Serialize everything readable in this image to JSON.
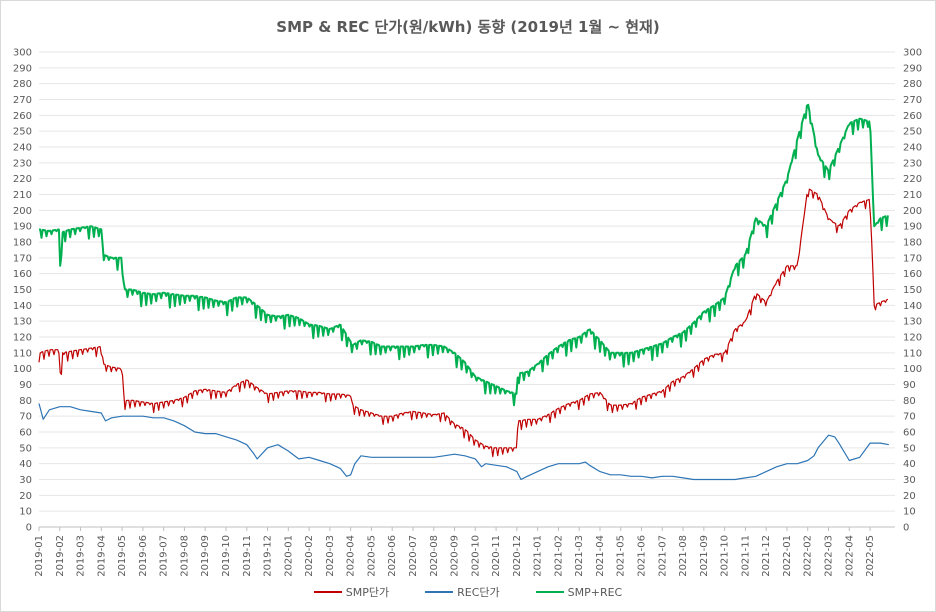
{
  "chart_data": {
    "type": "line",
    "title": "SMP & REC 단가(원/kWh) 동향 (2019년 1월 ~ 현재)",
    "xlabel": "",
    "ylabel": "",
    "ylim": [
      0,
      300
    ],
    "y_ticks": [
      0,
      10,
      20,
      30,
      40,
      50,
      60,
      70,
      80,
      90,
      100,
      110,
      120,
      130,
      140,
      150,
      160,
      170,
      180,
      190,
      200,
      210,
      220,
      230,
      240,
      250,
      260,
      270,
      280,
      290,
      300
    ],
    "secondary_y_ticks": [
      0,
      10,
      20,
      30,
      40,
      50,
      60,
      70,
      80,
      90,
      100,
      110,
      120,
      130,
      140,
      150,
      160,
      170,
      180,
      190,
      200,
      210,
      220,
      230,
      240,
      250,
      260,
      270,
      280,
      290,
      300
    ],
    "grid": true,
    "legend_position": "bottom",
    "x_tick_labels": [
      "2019-01",
      "2019-02",
      "2019-03",
      "2019-04",
      "2019-05",
      "2019-06",
      "2019-07",
      "2019-08",
      "2019-09",
      "2019-10",
      "2019-11",
      "2019-12",
      "2020-01",
      "2020-02",
      "2020-03",
      "2020-04",
      "2020-05",
      "2020-06",
      "2020-07",
      "2020-08",
      "2020-09",
      "2020-10",
      "2020-11",
      "2020-12",
      "2021-01",
      "2021-02",
      "2021-03",
      "2021-04",
      "2021-05",
      "2021-06",
      "2021-07",
      "2021-08",
      "2021-09",
      "2021-10",
      "2021-11",
      "2021-12",
      "2022-01",
      "2022-02",
      "2022-03",
      "2022-04",
      "2022-05"
    ],
    "series": [
      {
        "name": "SMP단가",
        "color": "#c00000",
        "x_months": [
          0,
          0.5,
          1,
          1.05,
          1.1,
          1.5,
          2,
          2.5,
          3,
          3.1,
          3.5,
          4,
          4.1,
          4.5,
          5,
          5.5,
          6,
          6.5,
          7,
          7.5,
          8,
          8.5,
          9,
          9.5,
          10,
          10.5,
          11,
          11.5,
          12,
          12.5,
          13,
          13.5,
          14,
          14.5,
          15,
          15.1,
          15.5,
          16,
          16.5,
          17,
          17.5,
          18,
          18.5,
          19,
          19.5,
          20,
          20.5,
          21,
          21.5,
          22,
          22.5,
          23,
          23.05,
          23.5,
          24,
          24.5,
          25,
          25.5,
          26,
          26.5,
          27,
          27.5,
          28,
          28.5,
          29,
          29.5,
          30,
          30.5,
          31,
          31.5,
          32,
          32.5,
          33,
          33.5,
          34,
          34.5,
          35,
          35.5,
          36,
          36.5,
          37,
          37.5,
          38,
          38.5,
          39,
          39.5,
          40,
          40.2,
          40.5,
          40.9
        ],
        "values": [
          110,
          112,
          112,
          76,
          110,
          111,
          112,
          113,
          114,
          103,
          101,
          100,
          80,
          80,
          79,
          78,
          79,
          80,
          82,
          86,
          87,
          86,
          85,
          90,
          93,
          88,
          84,
          85,
          86,
          86,
          85,
          85,
          84,
          84,
          83,
          77,
          74,
          72,
          70,
          70,
          72,
          73,
          72,
          71,
          72,
          65,
          62,
          55,
          51,
          50,
          50,
          50,
          67,
          68,
          68,
          71,
          75,
          78,
          80,
          84,
          85,
          77,
          77,
          78,
          82,
          84,
          86,
          92,
          95,
          100,
          106,
          109,
          110,
          125,
          130,
          148,
          142,
          155,
          165,
          165,
          214,
          210,
          195,
          190,
          200,
          205,
          207,
          140,
          142,
          144
        ]
      },
      {
        "name": "REC단가",
        "color": "#2e75b6",
        "x_months": [
          0,
          0.2,
          0.5,
          1,
          1.5,
          2,
          2.5,
          3,
          3.2,
          3.5,
          4,
          4.5,
          5,
          5.5,
          6,
          6.5,
          7,
          7.5,
          8,
          8.5,
          9,
          9.5,
          10,
          10.3,
          10.5,
          11,
          11.5,
          12,
          12.5,
          13,
          13.5,
          14,
          14.5,
          14.8,
          15,
          15.2,
          15.5,
          16,
          17,
          18,
          19,
          19.5,
          20,
          20.5,
          21,
          21.3,
          21.5,
          22,
          22.5,
          23,
          23.2,
          23.5,
          24,
          24.5,
          25,
          25.5,
          26,
          26.3,
          26.5,
          27,
          27.5,
          28,
          28.5,
          29,
          29.5,
          30,
          30.5,
          31,
          31.5,
          32,
          32.5,
          33,
          33.5,
          34,
          34.5,
          35,
          35.5,
          36,
          36.2,
          36.5,
          37,
          37.3,
          37.5,
          38,
          38.3,
          38.5,
          39,
          39.5,
          40,
          40.5,
          40.9
        ],
        "values": [
          78,
          68,
          74,
          76,
          76,
          74,
          73,
          72,
          67,
          69,
          70,
          70,
          70,
          69,
          69,
          67,
          64,
          60,
          59,
          59,
          57,
          55,
          52,
          47,
          43,
          50,
          52,
          48,
          43,
          44,
          42,
          40,
          37,
          32,
          33,
          40,
          45,
          44,
          44,
          44,
          44,
          45,
          46,
          45,
          43,
          38,
          40,
          39,
          38,
          35,
          30,
          32,
          35,
          38,
          40,
          40,
          40,
          41,
          39,
          35,
          33,
          33,
          32,
          32,
          31,
          32,
          32,
          31,
          30,
          30,
          30,
          30,
          30,
          31,
          32,
          35,
          38,
          40,
          40,
          40,
          42,
          45,
          50,
          58,
          57,
          53,
          42,
          44,
          53,
          53,
          52
        ]
      },
      {
        "name": "SMP+REC",
        "color": "#00b050",
        "x_months": [
          0,
          0.5,
          1,
          1.05,
          1.1,
          1.5,
          2,
          2.5,
          3,
          3.1,
          3.5,
          4,
          4.1,
          4.5,
          5,
          5.5,
          6,
          6.5,
          7,
          7.5,
          8,
          8.5,
          9,
          9.5,
          10,
          10.5,
          11,
          11.5,
          12,
          12.5,
          13,
          13.5,
          14,
          14.5,
          15,
          15.1,
          15.5,
          16,
          16.5,
          17,
          17.5,
          18,
          18.5,
          19,
          19.5,
          20,
          20.5,
          21,
          21.5,
          22,
          22.5,
          23,
          23.05,
          23.5,
          24,
          24.5,
          25,
          25.5,
          26,
          26.5,
          27,
          27.5,
          28,
          28.5,
          29,
          29.5,
          30,
          30.5,
          31,
          31.5,
          32,
          32.5,
          33,
          33.5,
          34,
          34.5,
          35,
          35.5,
          36,
          36.5,
          37,
          37.5,
          38,
          38.5,
          39,
          39.5,
          40,
          40.2,
          40.5,
          40.9
        ],
        "values": [
          188,
          187,
          188,
          150,
          186,
          188,
          189,
          190,
          188,
          172,
          170,
          170,
          150,
          150,
          148,
          147,
          148,
          147,
          146,
          146,
          145,
          143,
          142,
          145,
          145,
          140,
          134,
          133,
          134,
          132,
          128,
          127,
          125,
          128,
          117,
          115,
          118,
          117,
          114,
          114,
          114,
          114,
          115,
          115,
          114,
          110,
          104,
          95,
          92,
          89,
          86,
          84,
          97,
          98,
          103,
          109,
          114,
          118,
          120,
          125,
          118,
          110,
          110,
          110,
          112,
          114,
          116,
          120,
          123,
          129,
          136,
          140,
          145,
          165,
          172,
          195,
          190,
          205,
          220,
          245,
          268,
          235,
          225,
          240,
          255,
          258,
          256,
          190,
          195,
          197
        ]
      }
    ]
  }
}
